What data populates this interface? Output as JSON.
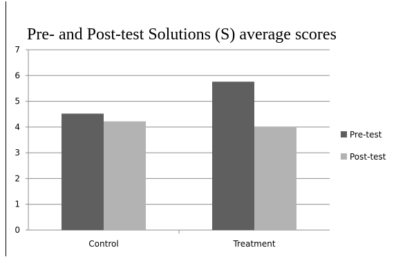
{
  "chart_data": {
    "type": "bar",
    "title": "Pre- and Post-test Solutions (S) average scores",
    "categories": [
      "Control",
      "Treatment"
    ],
    "series": [
      {
        "name": "Pre-test",
        "values": [
          4.52,
          5.76
        ],
        "color": "#5f5f5f"
      },
      {
        "name": "Post-test",
        "values": [
          4.22,
          4.0
        ],
        "color": "#b3b3b3"
      }
    ],
    "ylim": [
      0,
      7
    ],
    "yticks": [
      "0",
      "1",
      "2",
      "3",
      "4",
      "5",
      "6",
      "7"
    ],
    "grid": true,
    "legend_position": "right"
  }
}
